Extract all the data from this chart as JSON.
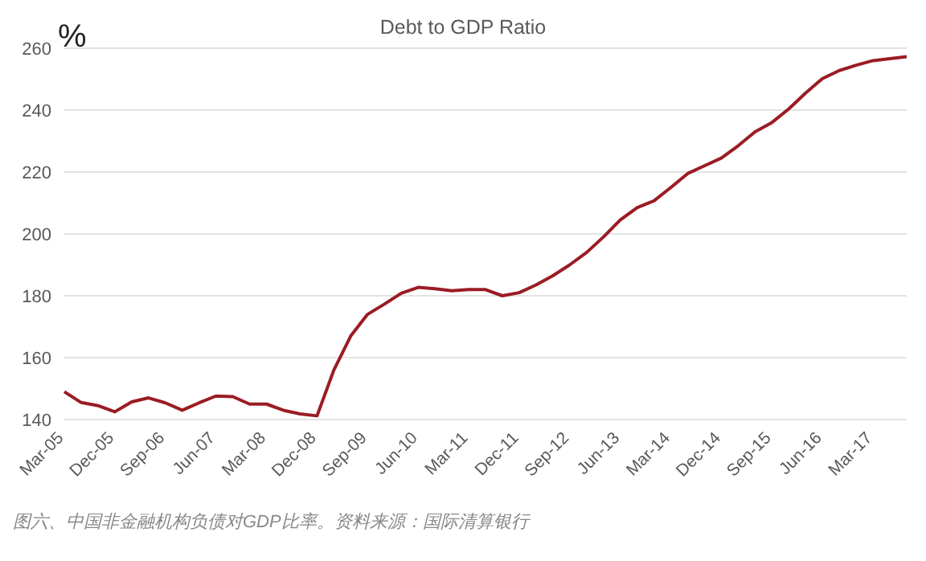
{
  "chart_data": {
    "type": "line",
    "title": "Debt to GDP Ratio",
    "ylabel": "%",
    "categories": [
      "Mar-05",
      null,
      null,
      "Dec-05",
      null,
      null,
      "Sep-06",
      null,
      null,
      "Jun-07",
      null,
      null,
      "Mar-08",
      null,
      null,
      "Dec-08",
      null,
      null,
      "Sep-09",
      null,
      null,
      "Jun-10",
      null,
      null,
      "Mar-11",
      null,
      null,
      "Dec-11",
      null,
      null,
      "Sep-12",
      null,
      null,
      "Jun-13",
      null,
      null,
      "Mar-14",
      null,
      null,
      "Dec-14",
      null,
      null,
      "Sep-15",
      null,
      null,
      "Jun-16",
      null,
      null,
      "Mar-17",
      null,
      null
    ],
    "series": [
      {
        "color": "#9b1c24",
        "values": [
          149,
          145.5,
          144.5,
          142.5,
          145.7,
          147,
          145.4,
          143,
          145.4,
          147.6,
          147.4,
          145,
          145,
          143,
          141.8,
          141.2,
          156,
          167,
          174,
          177.3,
          180.8,
          182.7,
          182.3,
          181.6,
          182,
          182,
          180,
          181,
          183.5,
          186.5,
          190,
          194,
          199,
          204.5,
          208.5,
          210.7,
          215,
          219.5,
          222,
          224.5,
          228.5,
          233,
          236,
          240.4,
          245.5,
          250.2,
          252.8,
          254.5,
          256,
          256.6,
          257.3
        ]
      }
    ],
    "ylim": [
      140,
      260
    ],
    "yticks": [
      140,
      160,
      180,
      200,
      220,
      240,
      260
    ],
    "grid": "y",
    "legend": false,
    "marker": "none",
    "line_style": "solid",
    "annotations": [
      "图六、中国非金融机构负债对GDP比率。资料来源：国际清算银行"
    ]
  }
}
